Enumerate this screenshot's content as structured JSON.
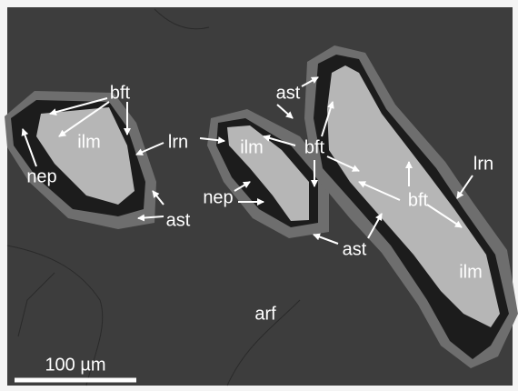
{
  "labels": [
    "bft",
    "ilm",
    "lrn",
    "nep",
    "ast",
    "ast",
    "ilm",
    "bft",
    "nep",
    "ast",
    "bft",
    "lrn",
    "ilm",
    "arf"
  ],
  "scale_bar": "100 µm"
}
